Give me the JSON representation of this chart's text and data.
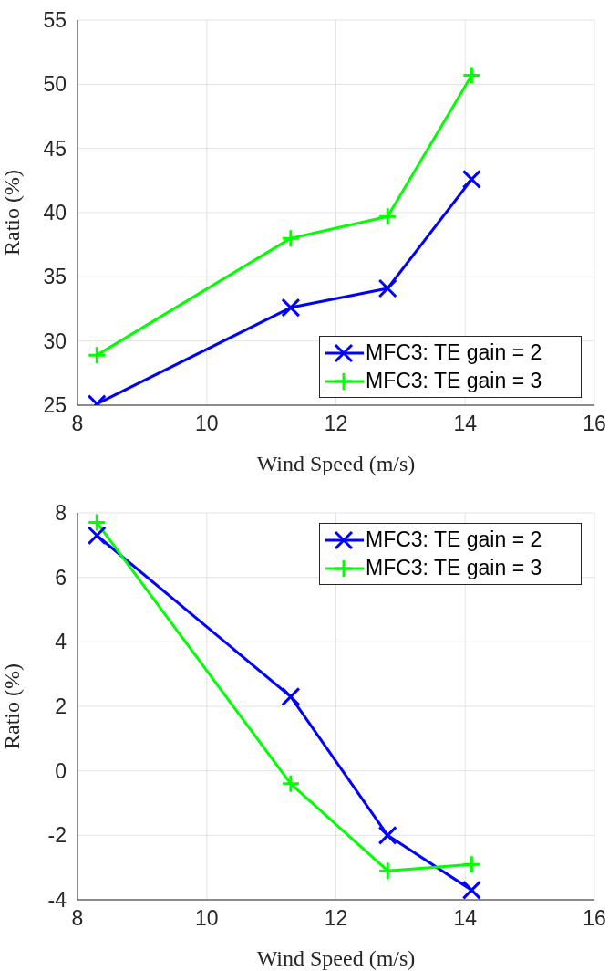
{
  "chart_data": [
    {
      "type": "line",
      "xlabel": "Wind Speed (m/s)",
      "ylabel": "Ratio (%)",
      "x": [
        8.3,
        11.3,
        12.8,
        14.1
      ],
      "xlim": [
        8,
        16
      ],
      "xticks": [
        8,
        10,
        12,
        14,
        16
      ],
      "ylim": [
        25,
        55
      ],
      "yticks": [
        25,
        30,
        35,
        40,
        45,
        50,
        55
      ],
      "grid": true,
      "legend": "bottom right",
      "line_style": "solid",
      "series": [
        {
          "name": "MFC3: TE gain = 2",
          "color": "#0000ff",
          "marker": "x",
          "values": [
            25.1,
            32.6,
            34.1,
            42.6
          ]
        },
        {
          "name": "MFC3: TE gain = 3",
          "color": "#00ff00",
          "marker": "cross",
          "values": [
            28.9,
            38.0,
            39.7,
            50.7
          ]
        }
      ]
    },
    {
      "type": "line",
      "xlabel": "Wind Speed (m/s)",
      "ylabel": "Ratio (%)",
      "x": [
        8.3,
        11.3,
        12.8,
        14.1
      ],
      "xlim": [
        8,
        16
      ],
      "xticks": [
        8,
        10,
        12,
        14,
        16
      ],
      "ylim": [
        -4,
        8
      ],
      "yticks": [
        -4,
        -2,
        0,
        2,
        4,
        6,
        8
      ],
      "grid": true,
      "legend": "top right",
      "line_style": "solid",
      "series": [
        {
          "name": "MFC3: TE gain = 2",
          "color": "#0000ff",
          "marker": "x",
          "values": [
            7.3,
            2.3,
            -2.0,
            -3.7
          ]
        },
        {
          "name": "MFC3: TE gain = 3",
          "color": "#00ff00",
          "marker": "cross",
          "values": [
            7.7,
            -0.4,
            -3.1,
            -2.9
          ]
        }
      ]
    }
  ]
}
